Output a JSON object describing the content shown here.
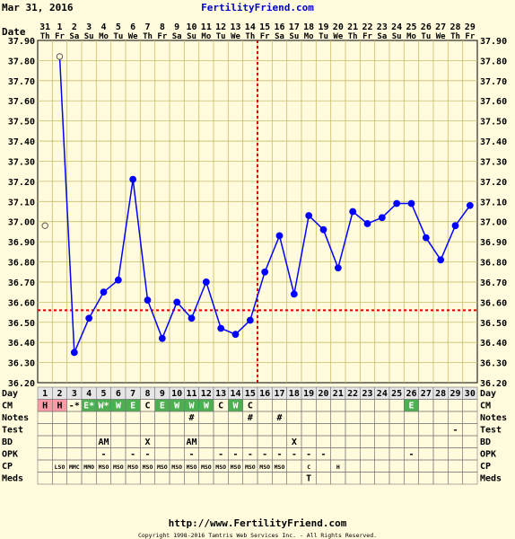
{
  "header": {
    "date_text": "Mar 31, 2016",
    "site_title": "FertilityFriend.com"
  },
  "footer": {
    "url": "http://www.FertilityFriend.com",
    "copyright": "Copyright 1998-2016 Tamtris Web Services Inc. - All Rights Reserved."
  },
  "colors": {
    "background": "#fffbdc",
    "grid_line": "#c9be6a",
    "temp_line": "#0000ff",
    "coverline": "#dd0000",
    "title_blue": "#0000cc",
    "menses": "#ff9aa6",
    "fertile": "#4caf50"
  },
  "row_labels": {
    "date": "Date",
    "day": "Day",
    "cm": "CM",
    "notes": "Notes",
    "test": "Test",
    "bd": "BD",
    "opk": "OPK",
    "cp": "CP",
    "meds": "Meds"
  },
  "chart_data": {
    "type": "line",
    "title": "",
    "xlabel": "",
    "ylabel": "",
    "x": [
      1,
      2,
      3,
      4,
      5,
      6,
      7,
      8,
      9,
      10,
      11,
      12,
      13,
      14,
      15,
      16,
      17,
      18,
      19,
      20,
      21,
      22,
      23,
      24,
      25,
      26,
      27,
      28,
      29,
      30
    ],
    "date_numbers": [
      "31",
      "1",
      "2",
      "3",
      "4",
      "5",
      "6",
      "7",
      "8",
      "9",
      "10",
      "11",
      "12",
      "13",
      "14",
      "15",
      "16",
      "17",
      "18",
      "19",
      "20",
      "21",
      "22",
      "23",
      "24",
      "25",
      "26",
      "27",
      "28",
      "29"
    ],
    "weekdays": [
      "Th",
      "Fr",
      "Sa",
      "Su",
      "Mo",
      "Tu",
      "We",
      "Th",
      "Fr",
      "Sa",
      "Su",
      "Mo",
      "Tu",
      "We",
      "Th",
      "Fr",
      "Sa",
      "Su",
      "Mo",
      "Tu",
      "We",
      "Th",
      "Fr",
      "Sa",
      "Su",
      "Mo",
      "Tu",
      "We",
      "Th",
      "Fr"
    ],
    "series": [
      {
        "values": [
          36.98,
          37.82,
          36.35,
          36.52,
          36.65,
          36.71,
          37.21,
          36.61,
          36.42,
          36.6,
          36.52,
          36.7,
          36.47,
          36.44,
          36.51,
          36.75,
          36.93,
          36.64,
          37.03,
          36.96,
          36.77,
          37.05,
          36.99,
          37.02,
          37.09,
          37.09,
          36.92,
          36.81,
          36.98,
          37.08
        ],
        "open_points": [
          1,
          2
        ]
      }
    ],
    "ylim": [
      36.2,
      37.9
    ],
    "y_ticks": [
      "36.20",
      "36.30",
      "36.40",
      "36.50",
      "36.60",
      "36.70",
      "36.80",
      "36.90",
      "37.00",
      "37.10",
      "37.20",
      "37.30",
      "37.40",
      "37.50",
      "37.60",
      "37.70",
      "37.80",
      "37.90"
    ],
    "coverline": 36.56,
    "ovulation_day": 15,
    "grid": true,
    "rows": {
      "cm": [
        "H",
        "H",
        "-*",
        "E*",
        "W*",
        "W",
        "E",
        "C",
        "E",
        "W",
        "W",
        "W",
        "C",
        "W",
        "C",
        "",
        "",
        "",
        "",
        "",
        "",
        "",
        "",
        "",
        "",
        "E",
        "",
        "",
        "",
        ""
      ],
      "cm_kinds": [
        "m",
        "m",
        "n",
        "f",
        "f",
        "f",
        "f",
        "n",
        "f",
        "f",
        "f",
        "f",
        "n",
        "f",
        "n",
        "n",
        "n",
        "n",
        "n",
        "n",
        "n",
        "n",
        "n",
        "n",
        "n",
        "f",
        "n",
        "n",
        "n",
        "n"
      ],
      "notes": [
        "",
        "",
        "",
        "",
        "",
        "",
        "",
        "",
        "",
        "",
        "#",
        "",
        "",
        "",
        "#",
        "",
        "#",
        "",
        "",
        "",
        "",
        "",
        "",
        "",
        "",
        "",
        "",
        "",
        "",
        ""
      ],
      "test": [
        "",
        "",
        "",
        "",
        "",
        "",
        "",
        "",
        "",
        "",
        "",
        "",
        "",
        "",
        "",
        "",
        "",
        "",
        "",
        "",
        "",
        "",
        "",
        "",
        "",
        "",
        "",
        "",
        "-",
        ""
      ],
      "bd": [
        "",
        "",
        "",
        "",
        "AM",
        "",
        "",
        "X",
        "",
        "",
        "AM",
        "",
        "",
        "",
        "",
        "",
        "",
        "X",
        "",
        "",
        "",
        "",
        "",
        "",
        "",
        "",
        "",
        "",
        "",
        ""
      ],
      "opk": [
        "",
        "",
        "",
        "",
        "-",
        "",
        "-",
        "-",
        "",
        "",
        "-",
        "",
        "-",
        "-",
        "-",
        "-",
        "-",
        "-",
        "-",
        "-",
        "",
        "",
        "",
        "",
        "",
        "-",
        "",
        "",
        "",
        ""
      ],
      "cp": [
        "",
        "LSO",
        "MMC",
        "MMO",
        "MSO",
        "MSO",
        "MSO",
        "MSO",
        "MSO",
        "MSO",
        "MSO",
        "MSO",
        "MSO",
        "MSO",
        "MSO",
        "MSO",
        "MSO",
        "",
        "C",
        "",
        "H",
        "",
        "",
        "",
        "",
        "",
        "",
        "",
        "",
        ""
      ],
      "meds": [
        "",
        "",
        "",
        "",
        "",
        "",
        "",
        "",
        "",
        "",
        "",
        "",
        "",
        "",
        "",
        "",
        "",
        "",
        "T",
        "",
        "",
        "",
        "",
        "",
        "",
        "",
        "",
        "",
        "",
        ""
      ]
    }
  }
}
